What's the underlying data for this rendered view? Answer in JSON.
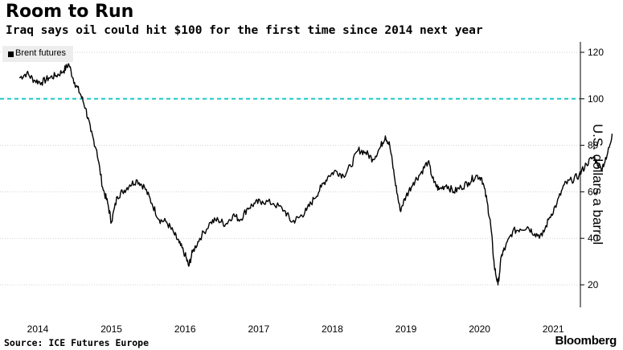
{
  "header": {
    "title": "Room to Run",
    "subtitle": "Iraq says oil could hit $100 for the first time since 2014 next year"
  },
  "footer": {
    "source": "Source: ICE Futures Europe",
    "brand": "Bloomberg"
  },
  "colors": {
    "line": "#000000",
    "reference_line": "#1fc8c8",
    "grid": "#d0d0d0",
    "legend_bg": "#ededed"
  },
  "chart_data": {
    "type": "line",
    "title": "Room to Run",
    "subtitle": "Iraq says oil could hit $100 for the first time since 2014 next year",
    "xlabel": "",
    "ylabel": "U.S. dollars a barrel",
    "x_ticks": [
      "2014",
      "2015",
      "2016",
      "2017",
      "2018",
      "2019",
      "2020",
      "2021"
    ],
    "y_ticks": [
      20,
      40,
      60,
      80,
      100,
      120
    ],
    "ylim": [
      10,
      125
    ],
    "y_axis_side": "right",
    "grid": "horizontal dotted",
    "legend": "top-left",
    "reference_line": {
      "y": 100,
      "style": "dashed"
    },
    "series": [
      {
        "name": "Brent futures",
        "x": [
          2013.75,
          2013.85,
          2013.95,
          2014.05,
          2014.15,
          2014.25,
          2014.35,
          2014.42,
          2014.5,
          2014.58,
          2014.65,
          2014.72,
          2014.8,
          2014.88,
          2014.95,
          2015.0,
          2015.08,
          2015.15,
          2015.25,
          2015.35,
          2015.45,
          2015.55,
          2015.65,
          2015.75,
          2015.85,
          2015.92,
          2016.0,
          2016.05,
          2016.1,
          2016.2,
          2016.35,
          2016.45,
          2016.55,
          2016.65,
          2016.75,
          2016.85,
          2016.95,
          2017.05,
          2017.2,
          2017.35,
          2017.45,
          2017.55,
          2017.65,
          2017.75,
          2017.85,
          2017.95,
          2018.05,
          2018.15,
          2018.25,
          2018.35,
          2018.45,
          2018.55,
          2018.65,
          2018.72,
          2018.78,
          2018.85,
          2018.92,
          2019.0,
          2019.1,
          2019.2,
          2019.3,
          2019.38,
          2019.45,
          2019.55,
          2019.65,
          2019.75,
          2019.85,
          2019.95,
          2020.03,
          2020.1,
          2020.15,
          2020.2,
          2020.25,
          2020.3,
          2020.35,
          2020.45,
          2020.55,
          2020.65,
          2020.75,
          2020.85,
          2020.95,
          2021.05,
          2021.15,
          2021.25,
          2021.35,
          2021.45,
          2021.55,
          2021.65,
          2021.72,
          2021.8
        ],
        "values": [
          109,
          111,
          108,
          107,
          109,
          110,
          112,
          115,
          107,
          102,
          96,
          86,
          78,
          62,
          55,
          47,
          58,
          60,
          63,
          65,
          62,
          55,
          48,
          47,
          42,
          38,
          33,
          28,
          34,
          40,
          47,
          48,
          46,
          50,
          48,
          53,
          55,
          56,
          55,
          52,
          47,
          49,
          52,
          57,
          62,
          67,
          69,
          67,
          71,
          78,
          77,
          74,
          79,
          84,
          80,
          65,
          52,
          58,
          64,
          68,
          73,
          64,
          61,
          63,
          60,
          62,
          64,
          67,
          66,
          56,
          46,
          28,
          20,
          33,
          36,
          43,
          44,
          45,
          42,
          41,
          49,
          55,
          63,
          65,
          67,
          72,
          75,
          70,
          74,
          85
        ]
      }
    ]
  }
}
